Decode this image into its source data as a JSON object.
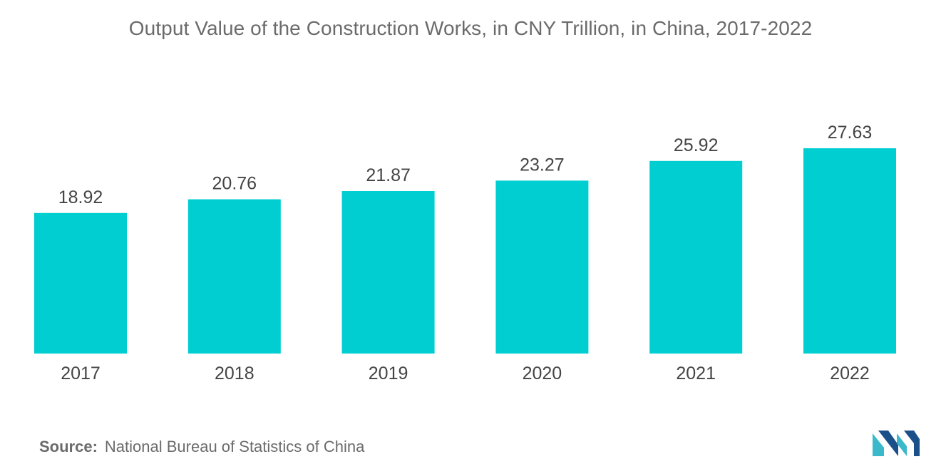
{
  "chart_data": {
    "type": "bar",
    "title": "Output Value of the Construction Works, in CNY Trillion, in China, 2017-2022",
    "categories": [
      "2017",
      "2018",
      "2019",
      "2020",
      "2021",
      "2022"
    ],
    "values": [
      18.92,
      20.76,
      21.87,
      23.27,
      25.92,
      27.63
    ],
    "value_labels": [
      "18.92",
      "20.76",
      "21.87",
      "23.27",
      "25.92",
      "27.63"
    ],
    "xlabel": "",
    "ylabel": "",
    "ylim": [
      0,
      27.63
    ],
    "grid": false,
    "legend": "none",
    "bar_color": "#00CED1"
  },
  "source": {
    "label": "Source:",
    "text": "National Bureau of Statistics of China"
  },
  "logo": {
    "icon": "mordor-intelligence-logo-icon",
    "colors": [
      "#1b4f8a",
      "#3bb8c9"
    ]
  }
}
